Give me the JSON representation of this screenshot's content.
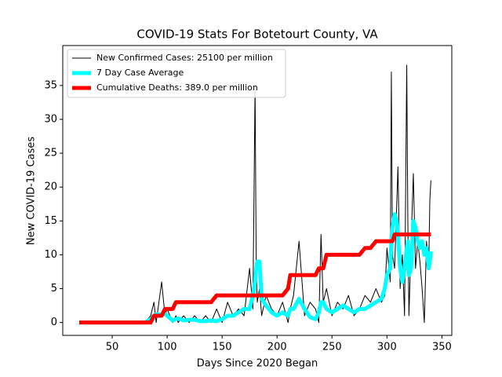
{
  "chart_data": {
    "type": "line",
    "title": "COVID-19 Stats For Botetourt County, VA",
    "x_label": "Days Since 2020 Began",
    "y_label": "New COVID-19 Cases",
    "x": [
      20,
      40,
      60,
      80,
      85,
      88,
      90,
      95,
      98,
      100,
      105,
      108,
      110,
      115,
      120,
      125,
      130,
      135,
      140,
      145,
      150,
      155,
      160,
      165,
      170,
      175,
      178,
      180,
      181,
      182,
      184,
      186,
      190,
      195,
      200,
      205,
      210,
      212,
      215,
      220,
      225,
      230,
      235,
      238,
      240,
      242,
      245,
      250,
      255,
      260,
      265,
      270,
      275,
      280,
      285,
      290,
      295,
      298,
      300,
      303,
      304,
      305,
      307,
      309,
      310,
      312,
      314,
      316,
      318,
      319,
      320,
      322,
      324,
      326,
      328,
      330,
      332,
      334,
      336,
      338,
      339,
      340
    ],
    "series": [
      {
        "name": "New Confirmed Cases: 25100 per million",
        "color": "#000000",
        "values": [
          0,
          0,
          0,
          0,
          1,
          3,
          0,
          6,
          1,
          2,
          0,
          1,
          0,
          1,
          0,
          1,
          0,
          1,
          0,
          2,
          0,
          3,
          1,
          2,
          1,
          8,
          2,
          35,
          9,
          3,
          5,
          1,
          4,
          2,
          1,
          3,
          0,
          2,
          4,
          12,
          1,
          3,
          2,
          0,
          13,
          3,
          5,
          1,
          3,
          2,
          4,
          1,
          2,
          4,
          3,
          5,
          3,
          4,
          11,
          6,
          37,
          10,
          8,
          18,
          23,
          5,
          10,
          1,
          38,
          15,
          1,
          12,
          22,
          8,
          12,
          9,
          5,
          0,
          12,
          8,
          18,
          21
        ]
      },
      {
        "name": "7 Day Case Average",
        "color": "#00ffff",
        "values": [
          0,
          0,
          0,
          0,
          0.5,
          1,
          1.2,
          1.2,
          1.3,
          1,
          0.3,
          0.5,
          0.6,
          0.3,
          0.4,
          0.4,
          0.2,
          0.2,
          0.3,
          0.2,
          0.5,
          1,
          1,
          1.5,
          2,
          2,
          4,
          6,
          8,
          9,
          9,
          3.5,
          2.5,
          1.5,
          1,
          1.5,
          1,
          2,
          2,
          3.5,
          2,
          0.8,
          0.5,
          1.5,
          3,
          3,
          2,
          1.5,
          2,
          2.5,
          2,
          1.5,
          2,
          2,
          2.5,
          3,
          3.5,
          5,
          7,
          8,
          12,
          14,
          16,
          15,
          13,
          8,
          6,
          8,
          11,
          12,
          7,
          8,
          15,
          14,
          12,
          11,
          12,
          10,
          11,
          8,
          9,
          10.5
        ]
      },
      {
        "name": "Cumulative Deaths: 389.0 per million",
        "color": "#ff0000",
        "values": [
          0,
          0,
          0,
          0,
          0,
          1,
          1,
          1,
          2,
          2,
          2,
          3,
          3,
          3,
          3,
          3,
          3,
          3,
          3,
          4,
          4,
          4,
          4,
          4,
          4,
          4,
          4,
          4,
          4,
          4,
          4,
          4,
          4,
          4,
          4,
          4,
          5,
          7,
          7,
          7,
          7,
          7,
          7,
          8,
          8,
          8,
          10,
          10,
          10,
          10,
          10,
          10,
          10,
          11,
          11,
          12,
          12,
          12,
          12,
          12,
          12,
          12,
          13,
          13,
          13,
          13,
          13,
          13,
          13,
          13,
          13,
          13,
          13,
          13,
          13,
          13,
          13,
          13,
          13,
          13,
          13,
          13
        ]
      }
    ],
    "xlim": [
      5,
      359
    ],
    "xticks": [
      50,
      100,
      150,
      200,
      250,
      300,
      350
    ],
    "ylim": [
      -1.9,
      40.9
    ],
    "yticks": [
      0,
      5,
      10,
      15,
      20,
      25,
      30,
      35
    ],
    "legend": "upper left"
  }
}
